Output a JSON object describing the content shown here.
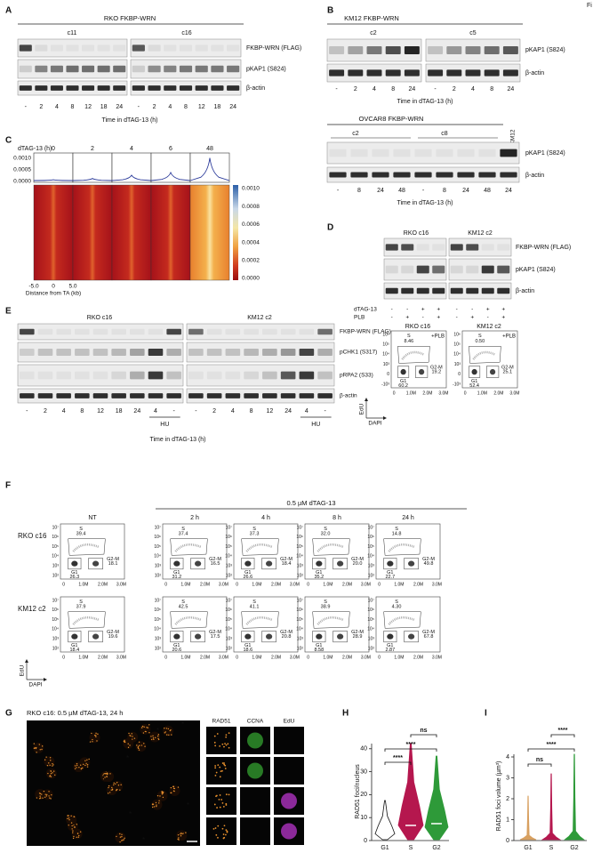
{
  "figure_tag": "Fi",
  "panel_a": {
    "label": "A",
    "title": "RKO FKBP-WRN",
    "clones": [
      "c11",
      "c16"
    ],
    "rows": [
      "FKBP-WRN (FLAG)",
      "pKAP1 (S824)",
      "β-actin"
    ],
    "lanes": [
      "-",
      "2",
      "4",
      "8",
      "12",
      "18",
      "24",
      "-",
      "2",
      "4",
      "8",
      "12",
      "18",
      "24"
    ],
    "xlabel": "Time in dTAG-13 (h)"
  },
  "panel_b": {
    "label": "B",
    "top": {
      "title": "KM12 FKBP-WRN",
      "clones": [
        "c2",
        "c5"
      ],
      "rows": [
        "pKAP1 (S824)",
        "β-actin"
      ],
      "lanes": [
        "-",
        "2",
        "4",
        "8",
        "24",
        "-",
        "2",
        "4",
        "8",
        "24"
      ],
      "xlabel": "Time in dTAG-13 (h)"
    },
    "bottom": {
      "title": "OVCAR8 FKBP-WRN",
      "clones": [
        "c2",
        "c8"
      ],
      "control": "KM12",
      "rows": [
        "pKAP1 (S824)",
        "β-actin"
      ],
      "lanes": [
        "-",
        "8",
        "24",
        "48",
        "-",
        "8",
        "24",
        "48",
        "24"
      ],
      "xlabel": "Time in dTAG-13 (h)"
    }
  },
  "panel_c": {
    "label": "C",
    "col_title": "dTAG-13 (h)",
    "columns": [
      "0",
      "2",
      "4",
      "6",
      "48"
    ],
    "profile_ticks": [
      "0.0010",
      "0.0005",
      "0.0000"
    ],
    "colorbar_ticks": [
      "0.0010",
      "0.0008",
      "0.0006",
      "0.0004",
      "0.0002",
      "0.0000"
    ],
    "xticks": [
      "-5.0",
      "0",
      "5.0"
    ],
    "xlabel": "Distance from TA (kb)"
  },
  "panel_d": {
    "label": "D",
    "clones": [
      "RKO c16",
      "KM12 c2"
    ],
    "rows": [
      "FKBP-WRN (FLAG)",
      "pKAP1 (S824)",
      "β-actin"
    ],
    "conditions": [
      {
        "name": "dTAG-13",
        "signs": [
          "-",
          "-",
          "+",
          "+",
          "-",
          "-",
          "+",
          "+"
        ]
      },
      {
        "name": "PLB",
        "signs": [
          "-",
          "+",
          "-",
          "+",
          "-",
          "+",
          "-",
          "+"
        ]
      }
    ],
    "flow": [
      {
        "title": "RKO c16",
        "treatment": "+PLB",
        "S": "8.46",
        "G1": "60.2",
        "G2M": "19.2"
      },
      {
        "title": "KM12 c2",
        "treatment": "+PLB",
        "S": "0.50",
        "G1": "52.4",
        "G2M": "25.1"
      }
    ],
    "gates": [
      "S",
      "G1",
      "G2-M"
    ],
    "yticks": [
      "10⁶",
      "10⁵",
      "10⁴",
      "10³",
      "0",
      "-10³"
    ],
    "xticks": [
      "0",
      "1.0M",
      "2.0M",
      "3.0M"
    ],
    "ylabel": "EdU",
    "xlabel": "DAPI"
  },
  "panel_e": {
    "label": "E",
    "clones": [
      "RKO c16",
      "KM12 c2"
    ],
    "rows": [
      "FKBP-WRN (FLAG)",
      "pCHK1 (S317)",
      "pRPA2 (S33)",
      "β-actin"
    ],
    "lanes": [
      "-",
      "2",
      "4",
      "8",
      "12",
      "18",
      "24",
      "4",
      "-",
      "-",
      "2",
      "4",
      "8",
      "12",
      "24",
      "4",
      "-"
    ],
    "hu": [
      "HU",
      "HU"
    ],
    "xlabel": "Time in dTAG-13 (h)"
  },
  "panel_f": {
    "label": "F",
    "treatment": "0.5 µM dTAG-13",
    "columns": [
      "NT",
      "2 h",
      "4 h",
      "8 h",
      "24 h"
    ],
    "rows": [
      {
        "name": "RKO c16",
        "plots": [
          {
            "S": "39.4",
            "G1": "26.3",
            "G2M": "18.1"
          },
          {
            "S": "37.4",
            "G1": "31.2",
            "G2M": "16.5"
          },
          {
            "S": "37.3",
            "G1": "26.6",
            "G2M": "18.4"
          },
          {
            "S": "32.0",
            "G1": "35.2",
            "G2M": "20.0"
          },
          {
            "S": "14.8",
            "G1": "22.7",
            "G2M": "49.8"
          }
        ]
      },
      {
        "name": "KM12 c2",
        "plots": [
          {
            "S": "37.9",
            "G1": "18.4",
            "G2M": "19.6"
          },
          {
            "S": "42.5",
            "G1": "20.6",
            "G2M": "17.5"
          },
          {
            "S": "41.1",
            "G1": "18.6",
            "G2M": "20.8"
          },
          {
            "S": "38.9",
            "G1": "8.58",
            "G2M": "28.9"
          },
          {
            "S": "4.30",
            "G1": "2.87",
            "G2M": "67.8"
          }
        ]
      }
    ],
    "gates": [
      "S",
      "G1",
      "G2-M"
    ],
    "yticks": [
      "10⁷",
      "10⁶",
      "10⁵",
      "10⁴",
      "10³",
      "10²"
    ],
    "xticks": [
      "0",
      "1.0M",
      "2.0M",
      "3.0M"
    ],
    "ylabel": "EdU",
    "xlabel": "DAPI"
  },
  "panel_g": {
    "label": "G",
    "title": "RKO c16: 0.5 µM dTAG-13, 24 h",
    "channels": [
      "RAD51",
      "CCNA",
      "EdU"
    ],
    "cell_markers": [
      "*",
      "*",
      "*",
      "*",
      "*",
      "*"
    ]
  },
  "panel_h": {
    "label": "H",
    "ylabel": "RAD51 foci/nucleus",
    "yticks": [
      "0",
      "10",
      "20",
      "30",
      "40"
    ],
    "groups": [
      "G1",
      "S",
      "G2"
    ],
    "significance": [
      "ns",
      "****",
      "****"
    ]
  },
  "panel_i": {
    "label": "I",
    "ylabel": "RAD51 foci volume (µm³)",
    "yticks": [
      "0",
      "1",
      "2",
      "3",
      "4"
    ],
    "groups": [
      "G1",
      "S",
      "G2"
    ],
    "significance": [
      "****",
      "****",
      "ns"
    ]
  }
}
